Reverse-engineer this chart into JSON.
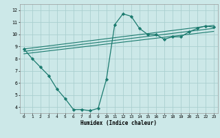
{
  "xlabel": "Humidex (Indice chaleur)",
  "bg_color": "#cce8e8",
  "grid_color": "#aacfcf",
  "line_color": "#1a7a6e",
  "xlim": [
    -0.5,
    23.5
  ],
  "ylim": [
    3.5,
    12.5
  ],
  "xticks": [
    0,
    1,
    2,
    3,
    4,
    5,
    6,
    7,
    8,
    9,
    10,
    11,
    12,
    13,
    14,
    15,
    16,
    17,
    18,
    19,
    20,
    21,
    22,
    23
  ],
  "yticks": [
    4,
    5,
    6,
    7,
    8,
    9,
    10,
    11,
    12
  ],
  "main_series": {
    "x": [
      0,
      1,
      2,
      3,
      4,
      5,
      6,
      7,
      8,
      9,
      10,
      11,
      12,
      13,
      14,
      15,
      16,
      17,
      18,
      19,
      20,
      21,
      22,
      23
    ],
    "y": [
      8.8,
      8.0,
      7.3,
      6.6,
      5.5,
      4.7,
      3.8,
      3.8,
      3.7,
      3.9,
      6.3,
      10.8,
      11.7,
      11.5,
      10.5,
      10.0,
      10.0,
      9.6,
      9.8,
      9.8,
      10.2,
      10.5,
      10.7,
      10.6
    ]
  },
  "trend_lines": [
    {
      "x": [
        0,
        23
      ],
      "y": [
        8.6,
        10.5
      ]
    },
    {
      "x": [
        0,
        23
      ],
      "y": [
        8.8,
        10.75
      ]
    },
    {
      "x": [
        0,
        23
      ],
      "y": [
        8.4,
        10.25
      ]
    }
  ],
  "xlabel_fontsize": 5.5,
  "tick_fontsize": 4.5
}
